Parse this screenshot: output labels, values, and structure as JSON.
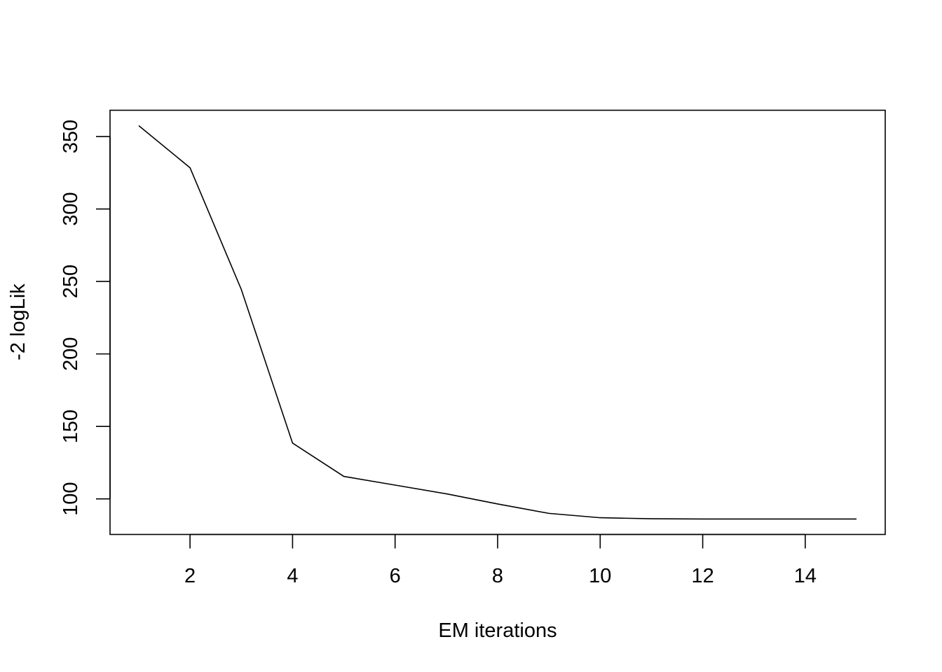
{
  "chart_data": {
    "type": "line",
    "title": "",
    "xlabel": "EM iterations",
    "ylabel": "-2 logLik",
    "x": [
      1,
      2,
      3,
      4,
      5,
      6,
      7,
      8,
      9,
      10,
      11,
      12,
      13,
      14,
      15
    ],
    "series": [
      {
        "values": [
          357.5,
          328.5,
          244.5,
          138.5,
          115.5,
          109.5,
          103.5,
          96.5,
          90.0,
          87.0,
          86.3,
          86.1,
          86.1,
          86.1,
          86.1
        ],
        "color": "#000000"
      }
    ],
    "xlim": [
      0.44,
      15.56
    ],
    "ylim": [
      75.46,
      368.14
    ],
    "xticks": [
      2,
      4,
      6,
      8,
      10,
      12,
      14
    ],
    "yticks": [
      100,
      150,
      200,
      250,
      300,
      350
    ],
    "grid": false,
    "legend": "none"
  }
}
